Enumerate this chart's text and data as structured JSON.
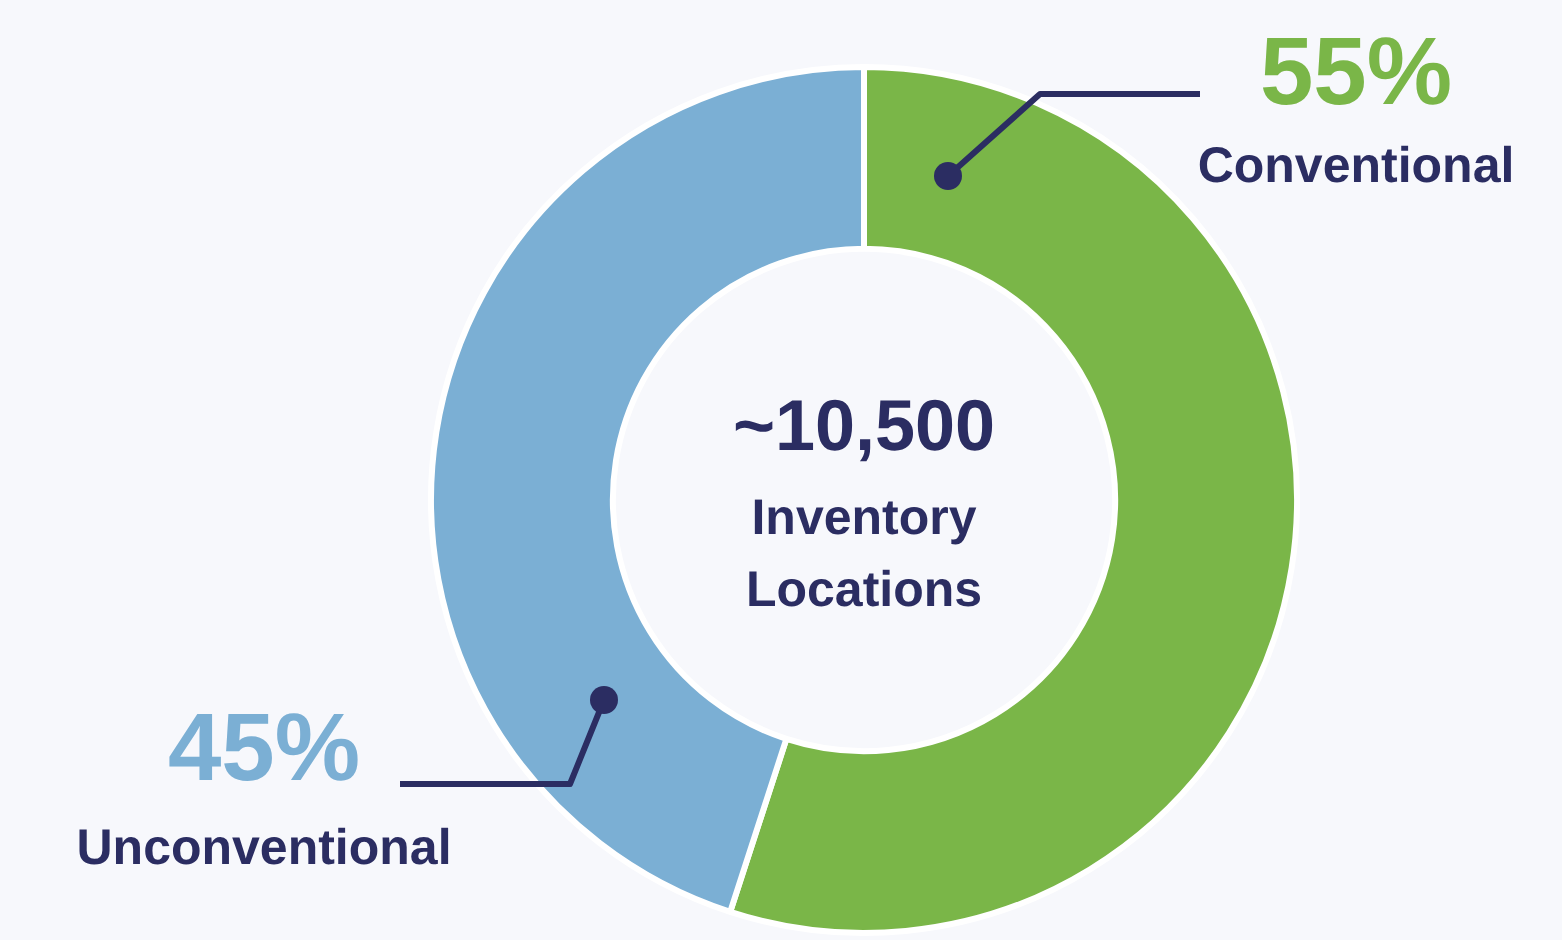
{
  "chart_data": {
    "type": "donut",
    "categories": [
      "Conventional",
      "Unconventional"
    ],
    "values": [
      55,
      45
    ],
    "colors": [
      "#7ab648",
      "#7bafd4"
    ],
    "value_labels": [
      "55%",
      "45%"
    ],
    "annotations": [
      "~10,500",
      "Inventory Locations"
    ],
    "legend": false
  }
}
